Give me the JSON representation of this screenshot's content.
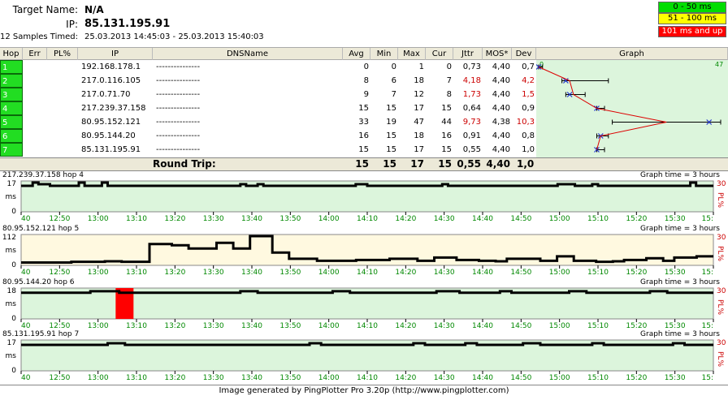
{
  "header": {
    "target_label": "Target Name:",
    "target_value": "N/A",
    "ip_label": "IP:",
    "ip_value": "85.131.195.91",
    "samples_label": "12 Samples Timed:",
    "samples_value": "25.03.2013 14:45:03 - 25.03.2013 15:40:03"
  },
  "legend": [
    {
      "label": "0 - 50 ms",
      "color": "#00dd00"
    },
    {
      "label": "51 - 100 ms",
      "color": "#ffff00"
    },
    {
      "label": "101 ms and up",
      "color": "#ff0000"
    }
  ],
  "columns": [
    "Hop",
    "Err",
    "PL%",
    "IP",
    "DNSName",
    "Avg",
    "Min",
    "Max",
    "Cur",
    "Jttr",
    "MOS*",
    "Dev",
    "Graph"
  ],
  "hops": [
    {
      "hop": "1",
      "ip": "192.168.178.1",
      "dns": "---------------",
      "avg": "0",
      "min": "0",
      "max": "1",
      "cur": "0",
      "jttr": "0,73",
      "mos": "4,40",
      "dev": "0,7",
      "jttr_red": false,
      "dev_red": false
    },
    {
      "hop": "2",
      "ip": "217.0.116.105",
      "dns": "---------------",
      "avg": "8",
      "min": "6",
      "max": "18",
      "cur": "7",
      "jttr": "4,18",
      "mos": "4,40",
      "dev": "4,2",
      "jttr_red": true,
      "dev_red": true
    },
    {
      "hop": "3",
      "ip": "217.0.71.70",
      "dns": "---------------",
      "avg": "9",
      "min": "7",
      "max": "12",
      "cur": "8",
      "jttr": "1,73",
      "mos": "4,40",
      "dev": "1,5",
      "jttr_red": true,
      "dev_red": true
    },
    {
      "hop": "4",
      "ip": "217.239.37.158",
      "dns": "---------------",
      "avg": "15",
      "min": "15",
      "max": "17",
      "cur": "15",
      "jttr": "0,64",
      "mos": "4,40",
      "dev": "0,9",
      "jttr_red": false,
      "dev_red": false
    },
    {
      "hop": "5",
      "ip": "80.95.152.121",
      "dns": "---------------",
      "avg": "33",
      "min": "19",
      "max": "47",
      "cur": "44",
      "jttr": "9,73",
      "mos": "4,38",
      "dev": "10,3",
      "jttr_red": true,
      "dev_red": true
    },
    {
      "hop": "6",
      "ip": "80.95.144.20",
      "dns": "---------------",
      "avg": "16",
      "min": "15",
      "max": "18",
      "cur": "16",
      "jttr": "0,91",
      "mos": "4,40",
      "dev": "0,8",
      "jttr_red": false,
      "dev_red": false
    },
    {
      "hop": "7",
      "ip": "85.131.195.91",
      "dns": "---------------",
      "avg": "15",
      "min": "15",
      "max": "17",
      "cur": "15",
      "jttr": "0,55",
      "mos": "4,40",
      "dev": "1,0",
      "jttr_red": false,
      "dev_red": false
    }
  ],
  "graph_scale": {
    "min_label": "0",
    "max_label": "47",
    "max": 47
  },
  "roundtrip": {
    "label": "Round Trip:",
    "avg": "15",
    "min": "15",
    "max": "17",
    "cur": "15",
    "jttr": "0,55",
    "mos": "4,40",
    "dev": "1,0"
  },
  "time_ticks": [
    "40",
    "12:50",
    "13:00",
    "13:10",
    "13:20",
    "13:30",
    "13:40",
    "13:50",
    "14:00",
    "14:10",
    "14:20",
    "14:30",
    "14:40",
    "14:50",
    "15:00",
    "15:10",
    "15:20",
    "15:30",
    "15:"
  ],
  "strips": [
    {
      "title": "217.239.37.158 hop 4",
      "right": "Graph time = 3 hours",
      "ymax": "17",
      "ymax_val": 17,
      "bg": "#dcf5dc",
      "pl_label": "PL%",
      "pl_max": "30",
      "values": [
        15,
        15,
        17,
        16,
        16,
        15,
        15,
        15,
        15,
        15,
        17,
        15,
        15,
        15,
        17,
        15,
        15,
        15,
        15,
        15,
        15,
        15,
        15,
        15,
        15,
        15,
        15,
        15,
        15,
        15,
        15,
        15,
        15,
        15,
        15,
        15,
        15,
        15,
        16,
        15,
        15,
        16,
        15,
        15,
        15,
        15,
        15,
        15,
        15,
        15,
        15,
        15,
        15,
        15,
        15,
        15,
        15,
        15,
        16,
        16,
        15,
        15,
        15,
        15,
        15,
        15,
        15,
        15,
        15,
        15,
        15,
        15,
        15,
        16,
        15,
        15,
        15,
        15,
        15,
        15,
        15,
        15,
        15,
        15,
        15,
        15,
        15,
        15,
        15,
        15,
        15,
        15,
        15,
        16,
        16,
        16,
        15,
        15,
        15,
        16,
        15,
        15,
        15,
        15,
        15,
        15,
        15,
        15,
        15,
        15,
        15,
        15,
        15,
        15,
        15,
        15,
        17,
        15,
        15,
        15
      ],
      "loss": []
    },
    {
      "title": "80.95.152.121 hop 5",
      "right": "Graph time = 3 hours",
      "ymax": "112",
      "ymax_val": 112,
      "bg": "#fff9e0",
      "pl_label": "PL%",
      "pl_max": "30",
      "values": [
        5,
        5,
        5,
        5,
        5,
        5,
        5,
        5,
        5,
        8,
        8,
        8,
        8,
        8,
        8,
        10,
        10,
        10,
        8,
        8,
        8,
        8,
        8,
        80,
        80,
        80,
        80,
        75,
        75,
        75,
        62,
        62,
        62,
        62,
        62,
        85,
        85,
        85,
        62,
        62,
        62,
        115,
        115,
        115,
        115,
        45,
        45,
        45,
        20,
        20,
        20,
        20,
        20,
        12,
        12,
        12,
        12,
        12,
        12,
        12,
        15,
        15,
        15,
        15,
        15,
        15,
        20,
        20,
        20,
        20,
        20,
        12,
        12,
        12,
        25,
        25,
        25,
        25,
        15,
        15,
        15,
        15,
        12,
        12,
        12,
        10,
        10,
        20,
        20,
        20,
        20,
        20,
        20,
        12,
        12,
        12,
        30,
        30,
        30,
        12,
        12,
        12,
        12,
        8,
        8,
        8,
        10,
        10,
        15,
        15,
        15,
        15,
        22,
        22,
        22,
        12,
        12,
        25,
        25,
        25,
        25,
        30,
        30,
        30
      ],
      "loss": []
    },
    {
      "title": "80.95.144.20 hop 6",
      "right": "Graph time = 3 hours",
      "ymax": "18",
      "ymax_val": 18,
      "bg": "#dcf5dc",
      "pl_label": "PL%",
      "pl_max": "30",
      "values": [
        16,
        16,
        16,
        16,
        16,
        16,
        16,
        16,
        16,
        16,
        16,
        16,
        17,
        17,
        17,
        17,
        17,
        16,
        16,
        16,
        16,
        16,
        16,
        16,
        16,
        16,
        16,
        16,
        16,
        16,
        16,
        16,
        16,
        16,
        16,
        16,
        16,
        16,
        17,
        17,
        17,
        16,
        16,
        16,
        16,
        16,
        16,
        16,
        16,
        16,
        16,
        16,
        16,
        16,
        17,
        17,
        17,
        16,
        16,
        16,
        16,
        16,
        16,
        16,
        16,
        16,
        16,
        16,
        16,
        16,
        16,
        16,
        17,
        17,
        17,
        17,
        16,
        16,
        16,
        16,
        16,
        16,
        16,
        17,
        17,
        16,
        16,
        16,
        16,
        16,
        16,
        16,
        16,
        16,
        16,
        17,
        17,
        17,
        16,
        16,
        16,
        16,
        16,
        16,
        16,
        16,
        16,
        16,
        16,
        17,
        17,
        17,
        16,
        16,
        16,
        16,
        16,
        16,
        16,
        16
      ],
      "loss": [
        {
          "at": "13:05",
          "pct": 30
        }
      ]
    },
    {
      "title": "85.131.195.91 hop 7",
      "right": "Graph time = 3 hours",
      "ymax": "17",
      "ymax_val": 17,
      "bg": "#dcf5dc",
      "pl_label": "PL%",
      "pl_max": "30",
      "values": [
        15,
        15,
        15,
        15,
        15,
        15,
        15,
        15,
        15,
        15,
        15,
        15,
        15,
        15,
        15,
        16,
        16,
        16,
        15,
        15,
        15,
        15,
        15,
        15,
        15,
        15,
        15,
        15,
        15,
        15,
        15,
        15,
        15,
        15,
        15,
        15,
        15,
        15,
        15,
        15,
        15,
        15,
        15,
        15,
        15,
        15,
        15,
        15,
        15,
        15,
        16,
        16,
        15,
        15,
        15,
        15,
        15,
        15,
        15,
        15,
        15,
        15,
        15,
        15,
        15,
        15,
        15,
        15,
        16,
        16,
        15,
        15,
        15,
        15,
        15,
        15,
        15,
        16,
        16,
        15,
        15,
        15,
        15,
        15,
        15,
        15,
        15,
        16,
        16,
        16,
        15,
        15,
        15,
        15,
        15,
        15,
        15,
        15,
        15,
        16,
        16,
        15,
        15,
        15,
        15,
        15,
        15,
        15,
        15,
        15,
        15,
        15,
        15,
        16,
        16,
        15,
        15,
        15,
        15,
        15
      ],
      "loss": []
    }
  ],
  "footer": "Image generated by PingPlotter Pro 3.20p (http://www.pingplotter.com)"
}
